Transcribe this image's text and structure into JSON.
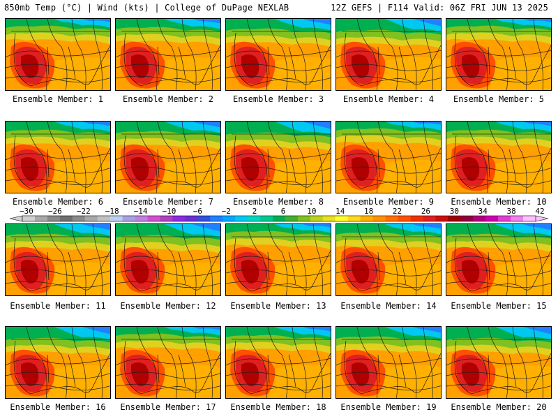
{
  "header": {
    "left_title": "850mb Temp (°C) | Wind (kts) | College of DuPage NEXLAB",
    "right_title": "12Z GEFS | F114 Valid: 06Z FRI JUN 13 2025"
  },
  "members": [
    {
      "label": "Ensemble Member: 1"
    },
    {
      "label": "Ensemble Member: 2"
    },
    {
      "label": "Ensemble Member: 3"
    },
    {
      "label": "Ensemble Member: 4"
    },
    {
      "label": "Ensemble Member: 5"
    },
    {
      "label": "Ensemble Member: 6"
    },
    {
      "label": "Ensemble Member: 7"
    },
    {
      "label": "Ensemble Member: 8"
    },
    {
      "label": "Ensemble Member: 9"
    },
    {
      "label": "Ensemble Member: 10"
    },
    {
      "label": "Ensemble Member: 11"
    },
    {
      "label": "Ensemble Member: 12"
    },
    {
      "label": "Ensemble Member: 13"
    },
    {
      "label": "Ensemble Member: 14"
    },
    {
      "label": "Ensemble Member: 15"
    },
    {
      "label": "Ensemble Member: 16"
    },
    {
      "label": "Ensemble Member: 17"
    },
    {
      "label": "Ensemble Member: 18"
    },
    {
      "label": "Ensemble Member: 19"
    },
    {
      "label": "Ensemble Member: 20"
    }
  ],
  "colorbar": {
    "tick_labels": [
      "−30",
      "−26",
      "−22",
      "−18",
      "−14",
      "−10",
      "−6",
      "−2",
      "2",
      "6",
      "10",
      "14",
      "18",
      "22",
      "26",
      "30",
      "34",
      "38",
      "42"
    ],
    "colors": [
      "#d0d0d0",
      "#a9a9a9",
      "#8a8a8a",
      "#6e6e6e",
      "#8a8a8a",
      "#a8a8a8",
      "#c2c2c2",
      "#b9d3ee",
      "#a8a0e0",
      "#c080e0",
      "#d050d0",
      "#b040c0",
      "#8a2be2",
      "#6a30d0",
      "#3050e0",
      "#2080ff",
      "#00a8ff",
      "#00c8f0",
      "#00d8c0",
      "#00c890",
      "#00b050",
      "#40b030",
      "#80c020",
      "#c0d020",
      "#e8e020",
      "#ffff30",
      "#ffd820",
      "#ffb000",
      "#ff9000",
      "#ff7000",
      "#ff5000",
      "#f03000",
      "#e02020",
      "#c81010",
      "#a00000",
      "#900040",
      "#b00080",
      "#d000b0",
      "#e040d0",
      "#f080f0",
      "#ffc0ff"
    ]
  }
}
